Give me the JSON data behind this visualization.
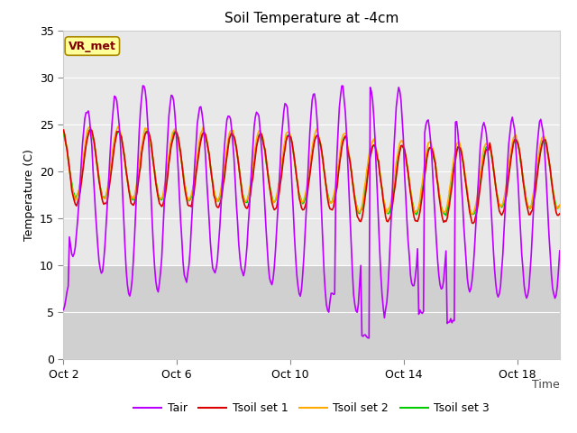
{
  "title": "Soil Temperature at -4cm",
  "xlabel": "Time",
  "ylabel": "Temperature (C)",
  "ylim": [
    0,
    35
  ],
  "xlim_days": [
    0,
    17.5
  ],
  "x_ticks_days": [
    0,
    4,
    8,
    12,
    16
  ],
  "x_tick_labels": [
    "Oct 2",
    "Oct 6",
    "Oct 10",
    "Oct 14",
    "Oct 18"
  ],
  "y_ticks": [
    0,
    5,
    10,
    15,
    20,
    25,
    30,
    35
  ],
  "fig_bg_color": "#ffffff",
  "plot_bg_upper": "#e8e8e8",
  "plot_bg_lower": "#d0d0d0",
  "grid_color": "#ffffff",
  "annotation_text": "VR_met",
  "annotation_bg": "#ffff99",
  "annotation_fg": "#800000",
  "annotation_border": "#aa8800",
  "line_colors": {
    "Tair": "#bb00ff",
    "Tsoil1": "#dd0000",
    "Tsoil2": "#ffaa00",
    "Tsoil3": "#00cc00"
  },
  "legend_labels": [
    "Tair",
    "Tsoil set 1",
    "Tsoil set 2",
    "Tsoil set 3"
  ],
  "line_width": 1.2,
  "title_fontsize": 11,
  "axis_fontsize": 9,
  "tick_fontsize": 9
}
